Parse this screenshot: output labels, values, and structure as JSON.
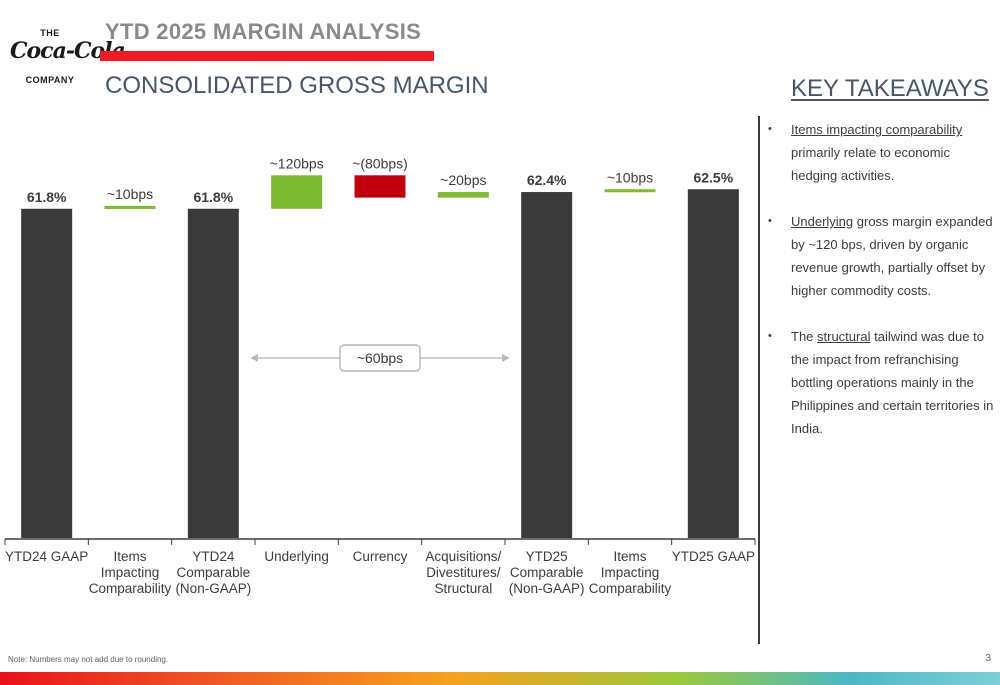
{
  "header": {
    "title": "YTD 2025 MARGIN ANALYSIS",
    "subtitle": "CONSOLIDATED GROSS MARGIN"
  },
  "logo": {
    "the": "THE",
    "script": "Coca-Cola",
    "company": "COMPANY"
  },
  "colors": {
    "accent_red": "#ed1c24",
    "total_bar": "#3a3a3a",
    "increase": "#7dbb35",
    "decrease": "#c0000f",
    "heading": "#475668"
  },
  "chart_data": {
    "type": "bar",
    "subtype": "waterfall",
    "unit": "% gross margin",
    "ylim": [
      50,
      63.5
    ],
    "categories": [
      [
        "YTD24 GAAP"
      ],
      [
        "Items",
        "Impacting",
        "Comparability"
      ],
      [
        "YTD24",
        "Comparable",
        "(Non-GAAP)"
      ],
      [
        "Underlying"
      ],
      [
        "Currency"
      ],
      [
        "Acquisitions/",
        "Divestitures/",
        "Structural"
      ],
      [
        "YTD25",
        "Comparable",
        "(Non-GAAP)"
      ],
      [
        "Items",
        "Impacting",
        "Comparability"
      ],
      [
        "YTD25 GAAP"
      ]
    ],
    "bars": [
      {
        "kind": "total",
        "start": 50,
        "end": 61.8,
        "label": "61.8%"
      },
      {
        "kind": "increase",
        "start": 61.8,
        "end": 61.9,
        "label": "~10bps"
      },
      {
        "kind": "total",
        "start": 50,
        "end": 61.8,
        "label": "61.8%"
      },
      {
        "kind": "increase",
        "start": 61.8,
        "end": 63.0,
        "label": "~120bps"
      },
      {
        "kind": "decrease",
        "start": 63.0,
        "end": 62.2,
        "label": "~(80bps)"
      },
      {
        "kind": "increase",
        "start": 62.2,
        "end": 62.4,
        "label": "~20bps"
      },
      {
        "kind": "total",
        "start": 50,
        "end": 62.4,
        "label": "62.4%"
      },
      {
        "kind": "increase",
        "start": 62.4,
        "end": 62.5,
        "label": "~10bps"
      },
      {
        "kind": "total",
        "start": 50,
        "end": 62.5,
        "label": "62.5%"
      }
    ],
    "annotation": {
      "label": "~60bps",
      "from_category": 2,
      "to_category": 6
    }
  },
  "takeaways": {
    "title": "KEY TAKEAWAYS",
    "items": [
      {
        "underlined": "Items impacting comparability",
        "rest": " primarily relate to economic hedging activities."
      },
      {
        "underlined": "Underlying",
        "rest": " gross margin expanded by ~120 bps, driven by organic revenue growth, partially offset by higher commodity costs."
      },
      {
        "prefix": "The ",
        "underlined": "structural",
        "rest": " tailwind was due to the impact from refranchising bottling operations mainly in the Philippines and certain territories in India."
      }
    ]
  },
  "footer": {
    "note": "Note: Numbers may not add due to rounding.",
    "page": "3"
  }
}
